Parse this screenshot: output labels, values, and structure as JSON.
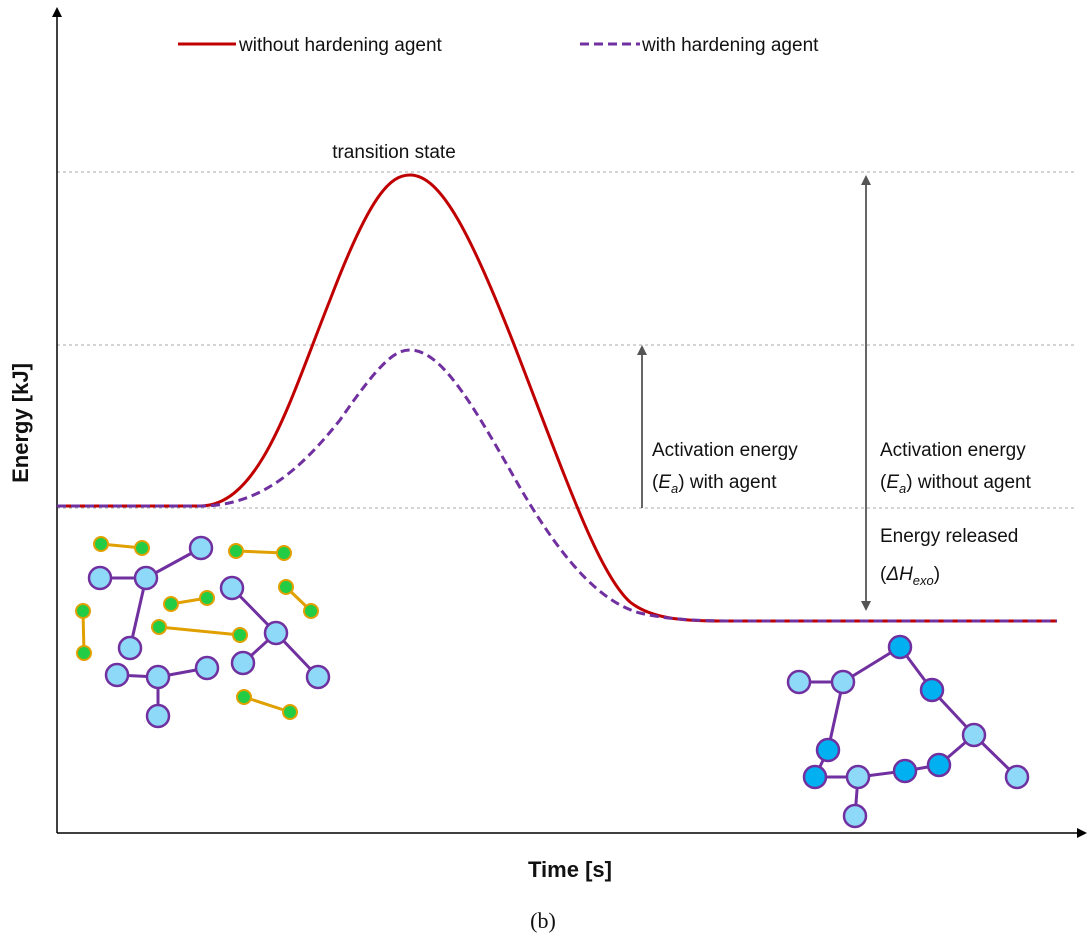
{
  "legend": {
    "items": [
      "without hardening agent",
      "with hardening agent"
    ]
  },
  "peak_label": "transition state",
  "annotations": [
    {
      "line1": "Activation energy",
      "open": "(",
      "symbol": "E",
      "sub": "a",
      "rest": ") with agent"
    },
    {
      "line1": "Activation energy",
      "open": "(",
      "symbol": "E",
      "sub": "a",
      "rest": ") without agent"
    },
    {
      "line1": "Energy released",
      "open": "(",
      "symbol": "ΔH",
      "sub": "exo",
      "rest": ")"
    }
  ],
  "axes": {
    "y_title": "Energy [kJ]",
    "x_title": "Time [s]"
  },
  "caption": "(b)"
}
